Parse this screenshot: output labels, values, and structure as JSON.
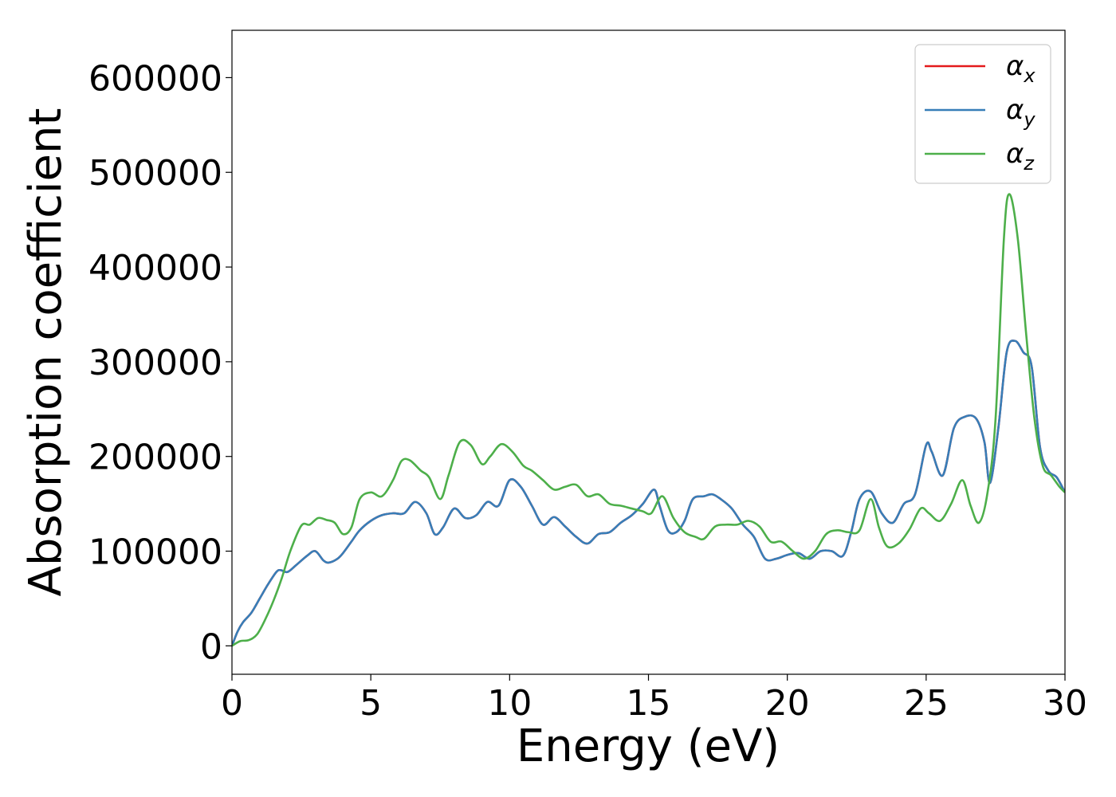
{
  "chart_data": {
    "type": "line",
    "title": "",
    "xlabel": "Energy (eV)",
    "ylabel": "Absorption coefficient",
    "xlim": [
      0,
      30
    ],
    "ylim": [
      -30000,
      650000
    ],
    "xticks": [
      0,
      5,
      10,
      15,
      20,
      25,
      30
    ],
    "xtick_labels": [
      "0",
      "5",
      "10",
      "15",
      "20",
      "25",
      "30"
    ],
    "yticks": [
      0,
      100000,
      200000,
      300000,
      400000,
      500000,
      600000
    ],
    "ytick_labels": [
      "0",
      "100000",
      "200000",
      "300000",
      "400000",
      "500000",
      "600000"
    ],
    "grid": false,
    "legend_position": "top-right",
    "series": [
      {
        "name": "α",
        "subscript": "x",
        "color": "#e41a1c",
        "x": [
          0,
          0.2,
          0.4,
          0.7,
          1.0,
          1.3,
          1.6,
          1.75,
          2.0,
          2.3,
          2.7,
          3.0,
          3.3,
          3.5,
          3.8,
          4.0,
          4.3,
          4.6,
          5.0,
          5.4,
          5.8,
          6.2,
          6.6,
          7.0,
          7.3,
          7.6,
          8.0,
          8.4,
          8.8,
          9.2,
          9.6,
          10.0,
          10.4,
          10.8,
          11.2,
          11.6,
          12.0,
          12.4,
          12.8,
          13.2,
          13.6,
          14.0,
          14.4,
          14.8,
          15.2,
          15.4,
          15.7,
          16.0,
          16.3,
          16.6,
          17.0,
          17.3,
          17.6,
          18.0,
          18.4,
          18.8,
          19.2,
          19.6,
          20.0,
          20.4,
          20.8,
          21.2,
          21.6,
          22.0,
          22.3,
          22.6,
          23.0,
          23.4,
          23.8,
          24.2,
          24.6,
          25.0,
          25.2,
          25.6,
          26.0,
          26.4,
          26.8,
          27.1,
          27.3,
          27.6,
          27.9,
          28.2,
          28.5,
          28.8,
          29.1,
          29.4,
          29.7,
          30.0
        ],
        "values": [
          0,
          15000,
          25000,
          35000,
          50000,
          65000,
          78000,
          80000,
          78000,
          85000,
          95000,
          100000,
          90000,
          88000,
          92000,
          98000,
          110000,
          122000,
          132000,
          138000,
          140000,
          140000,
          152000,
          140000,
          118000,
          125000,
          145000,
          135000,
          138000,
          152000,
          148000,
          175000,
          168000,
          148000,
          128000,
          136000,
          126000,
          115000,
          108000,
          118000,
          120000,
          130000,
          138000,
          150000,
          165000,
          148000,
          122000,
          120000,
          132000,
          155000,
          158000,
          160000,
          155000,
          145000,
          128000,
          115000,
          92000,
          92000,
          96000,
          98000,
          92000,
          100000,
          100000,
          95000,
          120000,
          155000,
          163000,
          140000,
          130000,
          150000,
          160000,
          212000,
          205000,
          180000,
          230000,
          242000,
          240000,
          215000,
          172000,
          230000,
          310000,
          322000,
          310000,
          295000,
          210000,
          185000,
          178000,
          162000
        ]
      },
      {
        "name": "α",
        "subscript": "y",
        "color": "#377eb8",
        "x": [
          0,
          0.2,
          0.4,
          0.7,
          1.0,
          1.3,
          1.6,
          1.75,
          2.0,
          2.3,
          2.7,
          3.0,
          3.3,
          3.5,
          3.8,
          4.0,
          4.3,
          4.6,
          5.0,
          5.4,
          5.8,
          6.2,
          6.6,
          7.0,
          7.3,
          7.6,
          8.0,
          8.4,
          8.8,
          9.2,
          9.6,
          10.0,
          10.4,
          10.8,
          11.2,
          11.6,
          12.0,
          12.4,
          12.8,
          13.2,
          13.6,
          14.0,
          14.4,
          14.8,
          15.2,
          15.4,
          15.7,
          16.0,
          16.3,
          16.6,
          17.0,
          17.3,
          17.6,
          18.0,
          18.4,
          18.8,
          19.2,
          19.6,
          20.0,
          20.4,
          20.8,
          21.2,
          21.6,
          22.0,
          22.3,
          22.6,
          23.0,
          23.4,
          23.8,
          24.2,
          24.6,
          25.0,
          25.2,
          25.6,
          26.0,
          26.4,
          26.8,
          27.1,
          27.3,
          27.6,
          27.9,
          28.2,
          28.5,
          28.8,
          29.1,
          29.4,
          29.7,
          30.0
        ],
        "values": [
          0,
          15000,
          25000,
          35000,
          50000,
          65000,
          78000,
          80000,
          78000,
          85000,
          95000,
          100000,
          90000,
          88000,
          92000,
          98000,
          110000,
          122000,
          132000,
          138000,
          140000,
          140000,
          152000,
          140000,
          118000,
          125000,
          145000,
          135000,
          138000,
          152000,
          148000,
          175000,
          168000,
          148000,
          128000,
          136000,
          126000,
          115000,
          108000,
          118000,
          120000,
          130000,
          138000,
          150000,
          165000,
          148000,
          122000,
          120000,
          132000,
          155000,
          158000,
          160000,
          155000,
          145000,
          128000,
          115000,
          92000,
          92000,
          96000,
          98000,
          92000,
          100000,
          100000,
          95000,
          120000,
          155000,
          163000,
          140000,
          130000,
          150000,
          160000,
          212000,
          205000,
          180000,
          230000,
          242000,
          240000,
          215000,
          172000,
          230000,
          310000,
          322000,
          310000,
          295000,
          210000,
          185000,
          178000,
          162000
        ]
      },
      {
        "name": "α",
        "subscript": "z",
        "color": "#4daf4a",
        "x": [
          0,
          0.3,
          0.6,
          0.9,
          1.2,
          1.5,
          1.8,
          2.1,
          2.5,
          2.8,
          3.1,
          3.4,
          3.7,
          4.0,
          4.3,
          4.6,
          5.0,
          5.4,
          5.8,
          6.1,
          6.4,
          6.8,
          7.1,
          7.5,
          7.8,
          8.2,
          8.6,
          9.0,
          9.3,
          9.7,
          10.1,
          10.5,
          10.8,
          11.2,
          11.6,
          12.0,
          12.4,
          12.8,
          13.2,
          13.6,
          14.0,
          14.4,
          14.8,
          15.1,
          15.5,
          15.9,
          16.3,
          16.7,
          17.0,
          17.4,
          17.8,
          18.2,
          18.6,
          19.0,
          19.4,
          19.8,
          20.2,
          20.6,
          21.0,
          21.4,
          21.8,
          22.2,
          22.6,
          23.0,
          23.3,
          23.6,
          24.0,
          24.4,
          24.8,
          25.1,
          25.5,
          25.9,
          26.3,
          26.6,
          26.9,
          27.2,
          27.5,
          27.8,
          28.0,
          28.3,
          28.6,
          28.9,
          29.2,
          29.5,
          29.8,
          30.0
        ],
        "values": [
          0,
          5000,
          6000,
          12000,
          28000,
          48000,
          72000,
          100000,
          127000,
          128000,
          135000,
          133000,
          130000,
          118000,
          125000,
          155000,
          162000,
          158000,
          175000,
          195000,
          196000,
          185000,
          178000,
          155000,
          180000,
          215000,
          212000,
          192000,
          200000,
          213000,
          205000,
          190000,
          185000,
          175000,
          165000,
          168000,
          170000,
          158000,
          160000,
          150000,
          148000,
          145000,
          142000,
          140000,
          158000,
          135000,
          120000,
          115000,
          113000,
          126000,
          128000,
          128000,
          132000,
          126000,
          110000,
          110000,
          100000,
          92000,
          100000,
          118000,
          122000,
          120000,
          122000,
          155000,
          125000,
          105000,
          108000,
          123000,
          145000,
          140000,
          132000,
          150000,
          175000,
          148000,
          130000,
          160000,
          240000,
          430000,
          477000,
          430000,
          330000,
          240000,
          190000,
          180000,
          168000,
          162000
        ]
      }
    ]
  }
}
